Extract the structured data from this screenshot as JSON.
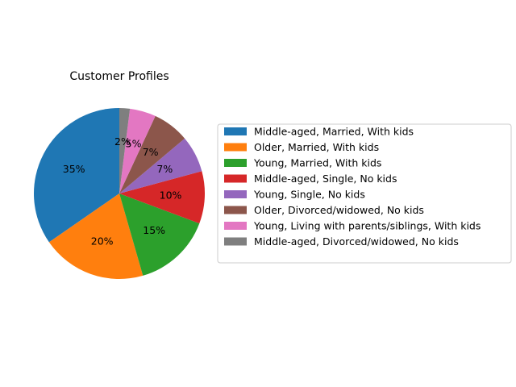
{
  "chart_data": {
    "type": "pie",
    "title": "Customer Profiles",
    "start_angle_deg": 90,
    "direction": "counterclockwise",
    "legend_position": "right",
    "slices": [
      {
        "label": "Middle-aged, Married, With kids",
        "value": 35,
        "pct_text": "35%",
        "color": "#1f77b4"
      },
      {
        "label": "Older, Married, With kids",
        "value": 20,
        "pct_text": "20%",
        "color": "#ff7f0e"
      },
      {
        "label": "Young, Married, With kids",
        "value": 15,
        "pct_text": "15%",
        "color": "#2ca02c"
      },
      {
        "label": "Middle-aged, Single, No kids",
        "value": 10,
        "pct_text": "10%",
        "color": "#d62728"
      },
      {
        "label": "Young, Single, No kids",
        "value": 7,
        "pct_text": "7%",
        "color": "#9467bd"
      },
      {
        "label": "Older, Divorced/widowed, No kids",
        "value": 7,
        "pct_text": "7%",
        "color": "#8c564b"
      },
      {
        "label": "Young, Living with parents/siblings, With kids",
        "value": 5,
        "pct_text": "5%",
        "color": "#e377c2"
      },
      {
        "label": "Middle-aged, Divorced/widowed, No kids",
        "value": 2,
        "pct_text": "2%",
        "color": "#7f7f7f"
      }
    ]
  }
}
